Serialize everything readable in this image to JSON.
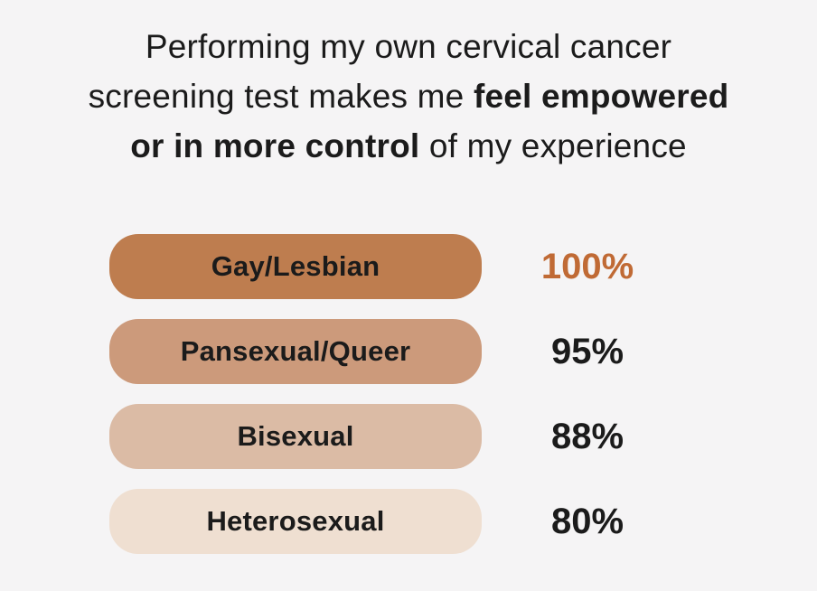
{
  "title": {
    "prefix": "Performing my own cervical cancer\nscreening test makes me ",
    "bold_span": "feel empowered\nor in more control",
    "suffix": " of my experience"
  },
  "colors": {
    "background": "#F5F4F5",
    "text_dark": "#1B1B1B",
    "accent_orange": "#C06A35"
  },
  "chart_data": {
    "type": "bar",
    "orientation": "horizontal",
    "title": "Performing my own cervical cancer screening test makes me feel empowered or in more control of my experience",
    "categories": [
      "Gay/Lesbian",
      "Pansexual/Queer",
      "Bisexual",
      "Heterosexual"
    ],
    "values": [
      100,
      95,
      88,
      80
    ],
    "value_labels": [
      "100%",
      "95%",
      "88%",
      "80%"
    ],
    "value_suffix": "%",
    "xlim": [
      0,
      100
    ],
    "bar_colors": [
      "#BE7D4F",
      "#CC9A7B",
      "#DBBBA5",
      "#EFDFD1"
    ],
    "value_text_colors": [
      "#C06A35",
      "#1B1B1B",
      "#1B1B1B",
      "#1B1B1B"
    ],
    "bars_equal_rendered_width": true,
    "grid": false,
    "axes": "none",
    "legend": "none",
    "labels_inside_bars": true
  }
}
